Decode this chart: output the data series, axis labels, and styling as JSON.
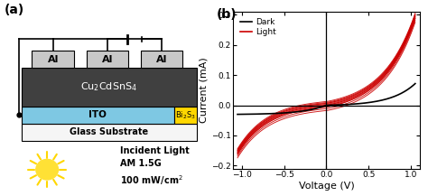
{
  "panel_a_label": "(a)",
  "panel_b_label": "(b)",
  "dark_color": "#000000",
  "light_color": "#cc0000",
  "legend_dark": "Dark",
  "legend_light": "Light",
  "xlabel": "Voltage (V)",
  "ylabel": "Current (mA)",
  "xlim": [
    -1.1,
    1.1
  ],
  "ylim": [
    -0.21,
    0.31
  ],
  "xticks": [
    -1.0,
    -0.5,
    0.0,
    0.5,
    1.0
  ],
  "yticks": [
    -0.2,
    -0.1,
    0.0,
    0.1,
    0.2,
    0.3
  ],
  "glass_color": "#f5f5f5",
  "ito_color": "#7EC8E3",
  "bi2s3_color": "#FFD700",
  "ccts_color": "#404040",
  "al_color": "#c8c8c8",
  "sun_body_color": "#FFE135",
  "sun_ray_color": "#FFD700"
}
